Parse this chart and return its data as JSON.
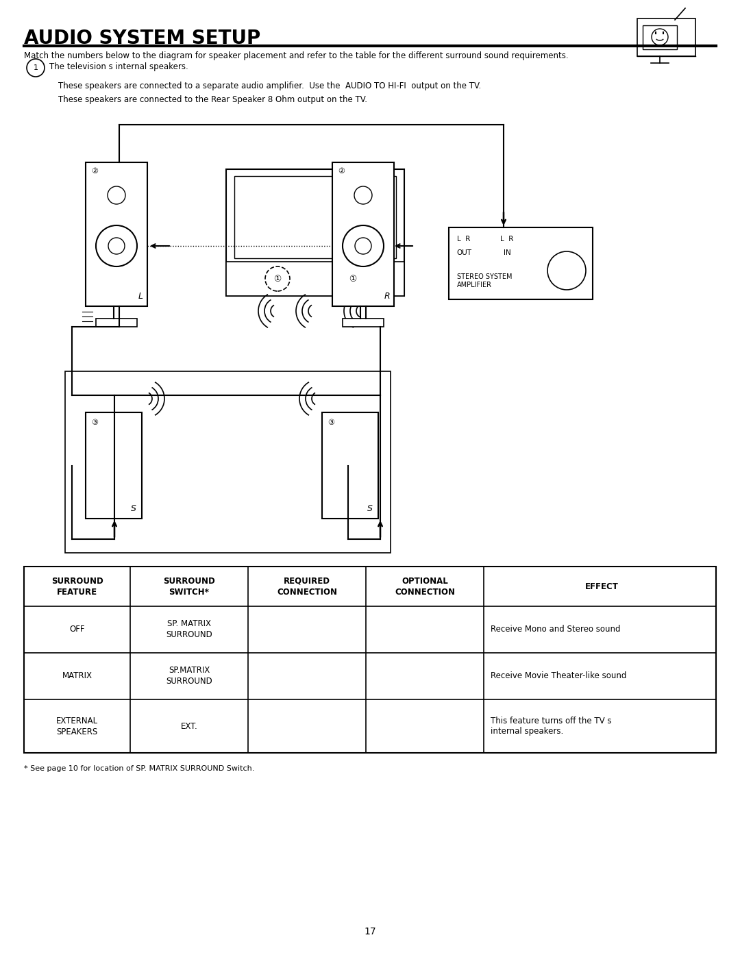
{
  "title": "AUDIO SYSTEM SETUP",
  "line1": "Match the numbers below to the diagram for speaker placement and refer to the table for the different surround sound requirements.",
  "line2": "The television s internal speakers.",
  "line3": "These speakers are connected to a separate audio amplifier.  Use the  AUDIO TO HI-FI  output on the TV.",
  "line4": "These speakers are connected to the Rear Speaker 8 Ohm output on the TV.",
  "table_headers": [
    "SURROUND\nFEATURE",
    "SURROUND\nSWITCH*",
    "REQUIRED\nCONNECTION",
    "OPTIONAL\nCONNECTION",
    "EFFECT"
  ],
  "table_rows": [
    [
      "OFF",
      "SP. MATRIX\nSURROUND",
      "",
      "",
      "Receive Mono and Stereo sound"
    ],
    [
      "MATRIX",
      "SP.MATRIX\nSURROUND",
      "",
      "",
      "Receive Movie Theater-like sound"
    ],
    [
      "EXTERNAL\nSPEAKERS",
      "EXT.",
      "",
      "",
      "This feature turns off the TV s\ninternal speakers."
    ]
  ],
  "footnote": "* See page 10 for location of SP. MATRIX SURROUND Switch.",
  "page_number": "17",
  "bg_color": "#ffffff",
  "text_color": "#000000"
}
